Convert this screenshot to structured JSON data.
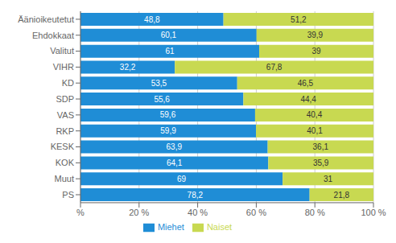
{
  "chart_data": {
    "type": "bar",
    "orientation": "horizontal",
    "stacked": true,
    "categories": [
      "Äänioikeutetut",
      "Ehdokkaat",
      "Valitut",
      "VIHR",
      "KD",
      "SDP",
      "VAS",
      "RKP",
      "KESK",
      "KOK",
      "Muut",
      "PS"
    ],
    "series": [
      {
        "name": "Miehet",
        "color": "#1f8dd6",
        "values": [
          48.8,
          60.1,
          61.0,
          32.2,
          53.5,
          55.6,
          59.6,
          59.9,
          63.9,
          64.1,
          69.0,
          78.2
        ],
        "value_labels": [
          "48,8",
          "60,1",
          "61",
          "32,2",
          "53,5",
          "55,6",
          "59,6",
          "59,9",
          "63,9",
          "64,1",
          "69",
          "78,2"
        ]
      },
      {
        "name": "Naiset",
        "color": "#c8d951",
        "values": [
          51.2,
          39.9,
          39.0,
          67.8,
          46.5,
          44.4,
          40.4,
          40.1,
          36.1,
          35.9,
          31.0,
          21.8
        ],
        "value_labels": [
          "51,2",
          "39,9",
          "39",
          "67,8",
          "46,5",
          "44,4",
          "40,4",
          "40,1",
          "36,1",
          "35,9",
          "31",
          "21,8"
        ]
      }
    ],
    "xlim": [
      0,
      100
    ],
    "xticks": [
      {
        "value": 0,
        "label": "%"
      },
      {
        "value": 20,
        "label": "20 %"
      },
      {
        "value": 40,
        "label": "40 %"
      },
      {
        "value": 60,
        "label": "60 %"
      },
      {
        "value": 80,
        "label": "80 %"
      },
      {
        "value": 100,
        "label": "100 %"
      }
    ],
    "grid": true,
    "legend": "bottom",
    "data_labels": true
  }
}
